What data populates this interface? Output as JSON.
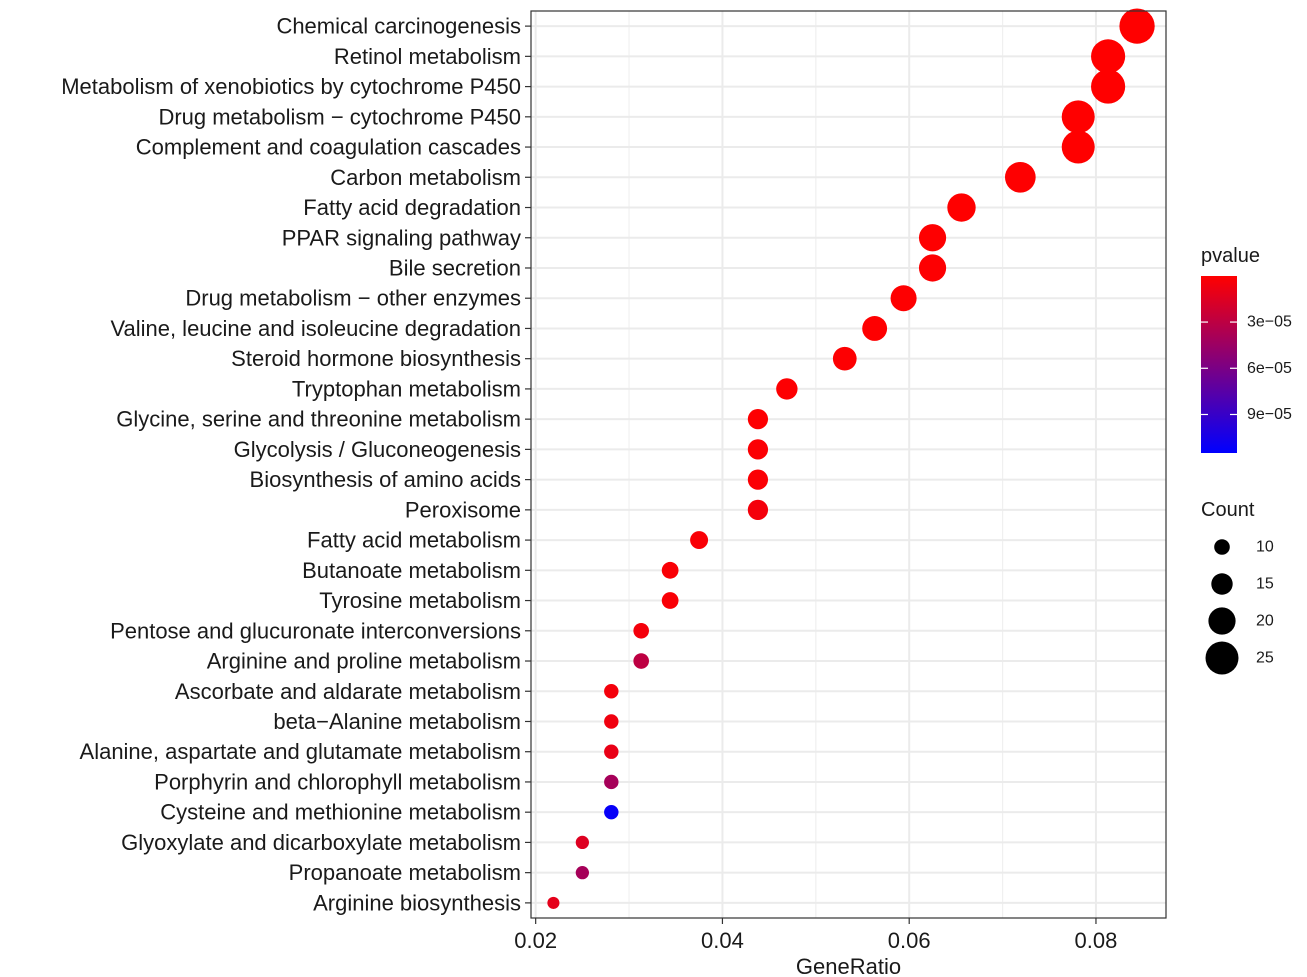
{
  "chart_data": {
    "type": "scatter",
    "xlabel": "GeneRatio",
    "ylabel": "",
    "xlim": [
      0.0195,
      0.0875
    ],
    "xticks": [
      0.02,
      0.04,
      0.06,
      0.08
    ],
    "xtick_labels": [
      "0.02",
      "0.04",
      "0.06",
      "0.08"
    ],
    "grid": true,
    "legend_position": "right",
    "color_legend": {
      "title": "pvalue",
      "low_color": "#ff0000",
      "high_color": "#0000ff",
      "range": [
        1e-07,
        0.000115
      ],
      "ticks": [
        3e-05,
        6e-05,
        9e-05
      ],
      "tick_labels": [
        "3e−05",
        "6e−05",
        "9e−05"
      ]
    },
    "size_legend": {
      "title": "Count",
      "values": [
        10,
        15,
        20,
        25
      ],
      "labels": [
        "10",
        "15",
        "20",
        "25"
      ],
      "color": "#000000"
    },
    "points": [
      {
        "term": "Chemical carcinogenesis",
        "gene_ratio": 0.0844,
        "count": 27,
        "pvalue": 1e-07
      },
      {
        "term": "Retinol metabolism",
        "gene_ratio": 0.0813,
        "count": 26,
        "pvalue": 1e-07
      },
      {
        "term": "Metabolism of xenobiotics by cytochrome P450",
        "gene_ratio": 0.0813,
        "count": 26,
        "pvalue": 1e-07
      },
      {
        "term": "Drug metabolism − cytochrome P450",
        "gene_ratio": 0.0781,
        "count": 25,
        "pvalue": 1e-07
      },
      {
        "term": "Complement and coagulation cascades",
        "gene_ratio": 0.0781,
        "count": 25,
        "pvalue": 1e-07
      },
      {
        "term": "Carbon metabolism",
        "gene_ratio": 0.0719,
        "count": 23,
        "pvalue": 5e-07
      },
      {
        "term": "Fatty acid degradation",
        "gene_ratio": 0.0656,
        "count": 21,
        "pvalue": 3e-07
      },
      {
        "term": "PPAR signaling pathway",
        "gene_ratio": 0.0625,
        "count": 20,
        "pvalue": 5e-07
      },
      {
        "term": "Bile secretion",
        "gene_ratio": 0.0625,
        "count": 20,
        "pvalue": 1e-06
      },
      {
        "term": "Drug metabolism − other enzymes",
        "gene_ratio": 0.0594,
        "count": 19,
        "pvalue": 5e-07
      },
      {
        "term": "Valine, leucine and isoleucine degradation",
        "gene_ratio": 0.0563,
        "count": 18,
        "pvalue": 5e-07
      },
      {
        "term": "Steroid hormone biosynthesis",
        "gene_ratio": 0.0531,
        "count": 17,
        "pvalue": 1e-06
      },
      {
        "term": "Tryptophan metabolism",
        "gene_ratio": 0.0469,
        "count": 15,
        "pvalue": 1e-06
      },
      {
        "term": "Glycine, serine and threonine metabolism",
        "gene_ratio": 0.0438,
        "count": 14,
        "pvalue": 1e-06
      },
      {
        "term": "Glycolysis / Gluconeogenesis",
        "gene_ratio": 0.0438,
        "count": 14,
        "pvalue": 2e-06
      },
      {
        "term": "Biosynthesis of amino acids",
        "gene_ratio": 0.0438,
        "count": 14,
        "pvalue": 2e-06
      },
      {
        "term": "Peroxisome",
        "gene_ratio": 0.0438,
        "count": 14,
        "pvalue": 5e-06
      },
      {
        "term": "Fatty acid metabolism",
        "gene_ratio": 0.0375,
        "count": 12,
        "pvalue": 3e-06
      },
      {
        "term": "Butanoate metabolism",
        "gene_ratio": 0.0344,
        "count": 11,
        "pvalue": 3e-06
      },
      {
        "term": "Tyrosine metabolism",
        "gene_ratio": 0.0344,
        "count": 11,
        "pvalue": 3e-06
      },
      {
        "term": "Pentose and glucuronate interconversions",
        "gene_ratio": 0.0313,
        "count": 10,
        "pvalue": 5e-06
      },
      {
        "term": "Arginine and proline metabolism",
        "gene_ratio": 0.0313,
        "count": 10,
        "pvalue": 3e-05
      },
      {
        "term": "Ascorbate and aldarate metabolism",
        "gene_ratio": 0.0281,
        "count": 9,
        "pvalue": 5e-06
      },
      {
        "term": "beta−Alanine metabolism",
        "gene_ratio": 0.0281,
        "count": 9,
        "pvalue": 7e-06
      },
      {
        "term": "Alanine, aspartate and glutamate metabolism",
        "gene_ratio": 0.0281,
        "count": 9,
        "pvalue": 1e-05
      },
      {
        "term": "Porphyrin and chlorophyll metabolism",
        "gene_ratio": 0.0281,
        "count": 9,
        "pvalue": 4e-05
      },
      {
        "term": "Cysteine and methionine metabolism",
        "gene_ratio": 0.0281,
        "count": 9,
        "pvalue": 0.000112
      },
      {
        "term": "Glyoxylate and dicarboxylate metabolism",
        "gene_ratio": 0.025,
        "count": 8,
        "pvalue": 1.5e-05
      },
      {
        "term": "Propanoate metabolism",
        "gene_ratio": 0.025,
        "count": 8,
        "pvalue": 4e-05
      },
      {
        "term": "Arginine biosynthesis",
        "gene_ratio": 0.0219,
        "count": 7,
        "pvalue": 1.2e-05
      }
    ]
  }
}
